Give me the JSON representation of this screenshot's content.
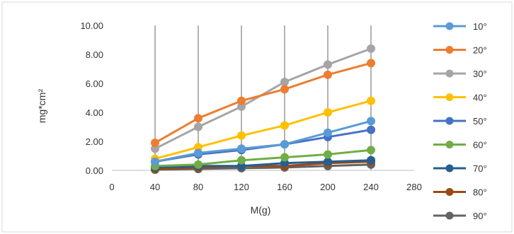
{
  "chart_data": {
    "type": "line",
    "title": "",
    "xlabel": "M(g)",
    "ylabel": "mg*cm²",
    "xlim": [
      0,
      280
    ],
    "ylim": [
      0,
      10
    ],
    "x_ticks": [
      "0",
      "40",
      "80",
      "120",
      "160",
      "200",
      "240",
      "280"
    ],
    "y_ticks": [
      "0.00",
      "2.00",
      "4.00",
      "6.00",
      "8.00",
      "10.00"
    ],
    "x": [
      40,
      80,
      120,
      160,
      200,
      240
    ],
    "grid": "vertical",
    "legend": "right",
    "series": [
      {
        "name": "10°",
        "color": "#5b9bd5",
        "values": [
          0.6,
          1.2,
          1.5,
          1.8,
          2.6,
          3.4
        ]
      },
      {
        "name": "20°",
        "color": "#ed7d31",
        "values": [
          1.9,
          3.6,
          4.8,
          5.6,
          6.6,
          7.4
        ]
      },
      {
        "name": "30°",
        "color": "#a5a5a5",
        "values": [
          1.5,
          3.0,
          4.4,
          6.1,
          7.3,
          8.4
        ]
      },
      {
        "name": "40°",
        "color": "#ffc000",
        "values": [
          0.8,
          1.6,
          2.4,
          3.1,
          4.0,
          4.8
        ]
      },
      {
        "name": "50°",
        "color": "#4472c4",
        "values": [
          0.6,
          1.1,
          1.4,
          1.8,
          2.3,
          2.8
        ]
      },
      {
        "name": "60°",
        "color": "#70ad47",
        "values": [
          0.3,
          0.4,
          0.7,
          0.9,
          1.1,
          1.4
        ]
      },
      {
        "name": "70°",
        "color": "#255e91",
        "values": [
          0.2,
          0.3,
          0.3,
          0.5,
          0.6,
          0.7
        ]
      },
      {
        "name": "80°",
        "color": "#9e480e",
        "values": [
          0.1,
          0.2,
          0.3,
          0.3,
          0.5,
          0.6
        ]
      },
      {
        "name": "90°",
        "color": "#636363",
        "values": [
          0.05,
          0.1,
          0.15,
          0.2,
          0.3,
          0.4
        ]
      }
    ]
  }
}
